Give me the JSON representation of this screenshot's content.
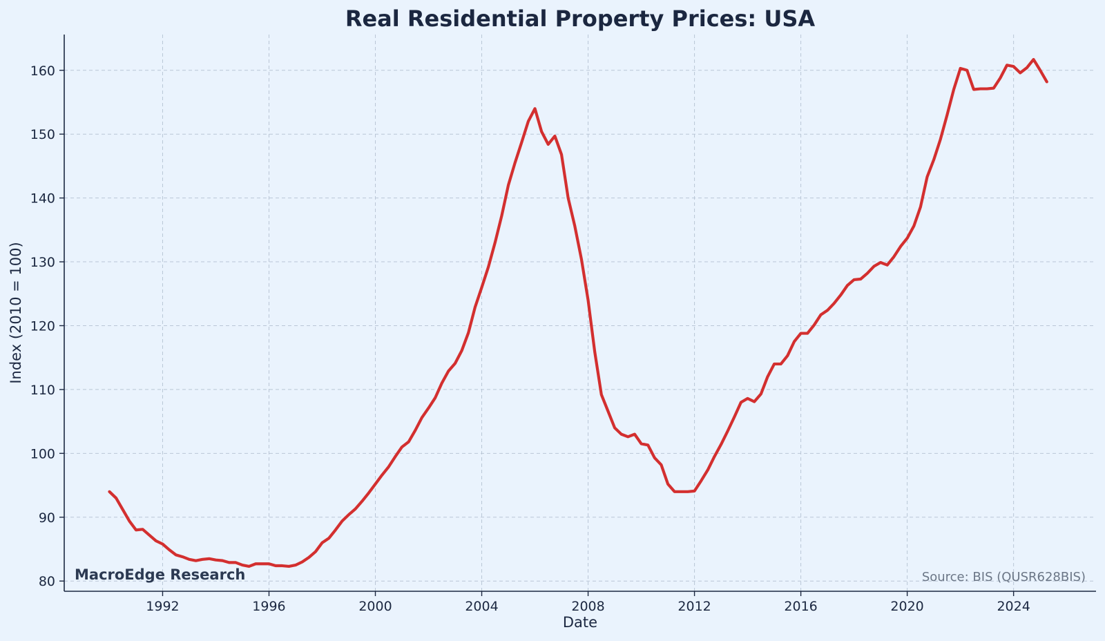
{
  "chart_data": {
    "type": "line",
    "title": "Real Residential Property Prices: USA",
    "xlabel": "Date",
    "ylabel": "Index (2010 = 100)",
    "xlim": [
      1988.3,
      2027.1
    ],
    "ylim": [
      78.4,
      165.6
    ],
    "x_ticks": [
      1992,
      1996,
      2000,
      2004,
      2008,
      2012,
      2016,
      2020,
      2024
    ],
    "x_tick_labels": [
      "1992",
      "1996",
      "2000",
      "2004",
      "2008",
      "2012",
      "2016",
      "2020",
      "2024"
    ],
    "y_ticks": [
      80,
      90,
      100,
      110,
      120,
      130,
      140,
      150,
      160
    ],
    "y_tick_labels": [
      "80",
      "90",
      "100",
      "110",
      "120",
      "130",
      "140",
      "150",
      "160"
    ],
    "grid": true,
    "series": [
      {
        "name": "Real Residential Property Prices: USA",
        "color": "#d32f2f",
        "points": [
          [
            1990.0,
            94.0
          ],
          [
            1990.25,
            93.0
          ],
          [
            1990.5,
            91.2
          ],
          [
            1990.75,
            89.4
          ],
          [
            1991.0,
            88.0
          ],
          [
            1991.25,
            88.1
          ],
          [
            1991.5,
            87.2
          ],
          [
            1991.75,
            86.3
          ],
          [
            1992.0,
            85.8
          ],
          [
            1992.25,
            84.9
          ],
          [
            1992.5,
            84.1
          ],
          [
            1992.75,
            83.8
          ],
          [
            1993.0,
            83.4
          ],
          [
            1993.25,
            83.2
          ],
          [
            1993.5,
            83.4
          ],
          [
            1993.75,
            83.5
          ],
          [
            1994.0,
            83.3
          ],
          [
            1994.25,
            83.2
          ],
          [
            1994.5,
            82.9
          ],
          [
            1994.75,
            82.9
          ],
          [
            1995.0,
            82.5
          ],
          [
            1995.25,
            82.3
          ],
          [
            1995.5,
            82.7
          ],
          [
            1995.75,
            82.7
          ],
          [
            1996.0,
            82.7
          ],
          [
            1996.25,
            82.4
          ],
          [
            1996.5,
            82.4
          ],
          [
            1996.75,
            82.3
          ],
          [
            1997.0,
            82.5
          ],
          [
            1997.25,
            83.0
          ],
          [
            1997.5,
            83.7
          ],
          [
            1997.75,
            84.6
          ],
          [
            1998.0,
            86.0
          ],
          [
            1998.25,
            86.7
          ],
          [
            1998.5,
            88.0
          ],
          [
            1998.75,
            89.4
          ],
          [
            1999.0,
            90.4
          ],
          [
            1999.25,
            91.3
          ],
          [
            1999.5,
            92.5
          ],
          [
            1999.75,
            93.8
          ],
          [
            2000.0,
            95.2
          ],
          [
            2000.25,
            96.6
          ],
          [
            2000.5,
            97.9
          ],
          [
            2000.75,
            99.5
          ],
          [
            2001.0,
            101.0
          ],
          [
            2001.25,
            101.8
          ],
          [
            2001.5,
            103.6
          ],
          [
            2001.75,
            105.6
          ],
          [
            2002.0,
            107.1
          ],
          [
            2002.25,
            108.7
          ],
          [
            2002.5,
            111.0
          ],
          [
            2002.75,
            112.9
          ],
          [
            2003.0,
            114.1
          ],
          [
            2003.25,
            116.1
          ],
          [
            2003.5,
            118.9
          ],
          [
            2003.75,
            122.9
          ],
          [
            2004.0,
            126.0
          ],
          [
            2004.25,
            129.2
          ],
          [
            2004.5,
            133.0
          ],
          [
            2004.75,
            137.2
          ],
          [
            2005.0,
            142.0
          ],
          [
            2005.25,
            145.5
          ],
          [
            2005.5,
            148.7
          ],
          [
            2005.75,
            152.0
          ],
          [
            2006.0,
            154.0
          ],
          [
            2006.25,
            150.4
          ],
          [
            2006.5,
            148.4
          ],
          [
            2006.75,
            149.7
          ],
          [
            2007.0,
            146.8
          ],
          [
            2007.25,
            140.0
          ],
          [
            2007.5,
            135.6
          ],
          [
            2007.75,
            130.4
          ],
          [
            2008.0,
            124.0
          ],
          [
            2008.25,
            115.9
          ],
          [
            2008.5,
            109.2
          ],
          [
            2008.75,
            106.6
          ],
          [
            2009.0,
            104.0
          ],
          [
            2009.25,
            103.0
          ],
          [
            2009.5,
            102.6
          ],
          [
            2009.75,
            103.0
          ],
          [
            2010.0,
            101.5
          ],
          [
            2010.25,
            101.3
          ],
          [
            2010.5,
            99.3
          ],
          [
            2010.75,
            98.2
          ],
          [
            2011.0,
            95.2
          ],
          [
            2011.25,
            94.0
          ],
          [
            2011.5,
            94.0
          ],
          [
            2011.75,
            94.0
          ],
          [
            2012.0,
            94.1
          ],
          [
            2012.25,
            95.7
          ],
          [
            2012.5,
            97.4
          ],
          [
            2012.75,
            99.5
          ],
          [
            2013.0,
            101.4
          ],
          [
            2013.25,
            103.5
          ],
          [
            2013.5,
            105.7
          ],
          [
            2013.75,
            108.0
          ],
          [
            2014.0,
            108.6
          ],
          [
            2014.25,
            108.1
          ],
          [
            2014.5,
            109.3
          ],
          [
            2014.75,
            112.0
          ],
          [
            2015.0,
            114.0
          ],
          [
            2015.25,
            114.0
          ],
          [
            2015.5,
            115.3
          ],
          [
            2015.75,
            117.5
          ],
          [
            2016.0,
            118.8
          ],
          [
            2016.25,
            118.8
          ],
          [
            2016.5,
            120.1
          ],
          [
            2016.75,
            121.7
          ],
          [
            2017.0,
            122.4
          ],
          [
            2017.25,
            123.5
          ],
          [
            2017.5,
            124.8
          ],
          [
            2017.75,
            126.3
          ],
          [
            2018.0,
            127.2
          ],
          [
            2018.25,
            127.3
          ],
          [
            2018.5,
            128.2
          ],
          [
            2018.75,
            129.3
          ],
          [
            2019.0,
            129.9
          ],
          [
            2019.25,
            129.5
          ],
          [
            2019.5,
            130.8
          ],
          [
            2019.75,
            132.4
          ],
          [
            2020.0,
            133.7
          ],
          [
            2020.25,
            135.6
          ],
          [
            2020.5,
            138.6
          ],
          [
            2020.75,
            143.3
          ],
          [
            2021.0,
            146.0
          ],
          [
            2021.25,
            149.2
          ],
          [
            2021.5,
            153.0
          ],
          [
            2021.75,
            157.0
          ],
          [
            2022.0,
            160.3
          ],
          [
            2022.25,
            160.0
          ],
          [
            2022.5,
            157.0
          ],
          [
            2022.75,
            157.1
          ],
          [
            2023.0,
            157.1
          ],
          [
            2023.25,
            157.2
          ],
          [
            2023.5,
            158.8
          ],
          [
            2023.75,
            160.8
          ],
          [
            2024.0,
            160.6
          ],
          [
            2024.25,
            159.6
          ],
          [
            2024.5,
            160.4
          ],
          [
            2024.75,
            161.7
          ],
          [
            2025.0,
            160.0
          ],
          [
            2025.25,
            158.2
          ]
        ]
      }
    ],
    "watermark": "MacroEdge Research",
    "source": "Source: BIS (QUSR628BIS)"
  },
  "colors": {
    "background": "#eaf3fd",
    "line": "#d32f2f",
    "text": "#1b2740",
    "grid": "#b9c6d6"
  }
}
